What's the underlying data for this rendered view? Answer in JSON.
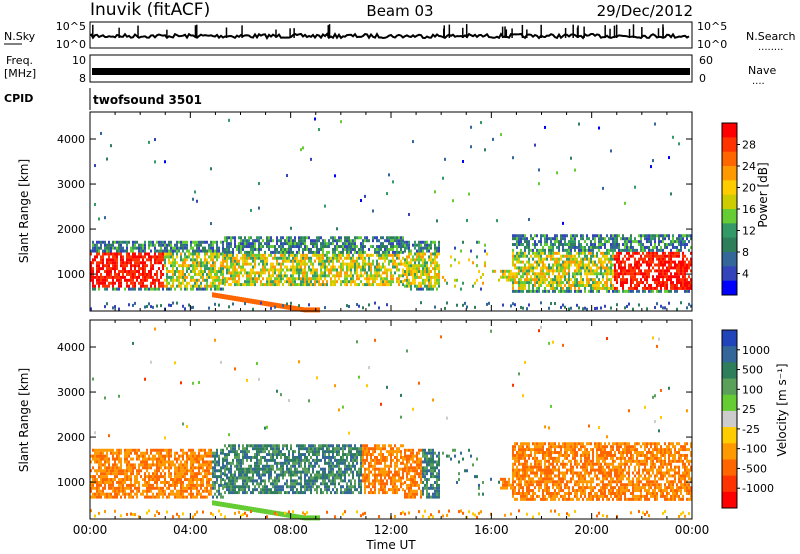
{
  "header": {
    "station": "Inuvik (fitACF)",
    "beam": "Beam 03",
    "date": "29/Dec/2012"
  },
  "noise_panel": {
    "left_label": "N.Sky",
    "right_label": "N.Search",
    "right_dots": "........",
    "tick_labels": [
      "10^5",
      "10^0"
    ],
    "right_tick_labels": [
      "10^5",
      "10^0"
    ]
  },
  "freq_panel": {
    "left_label_line1": "Freq.",
    "left_label_line2": "[MHz]",
    "right_label": "Nave",
    "right_dots": "....",
    "left_ticks": [
      "10",
      "8"
    ],
    "right_ticks": [
      "60",
      "0"
    ]
  },
  "cpid": {
    "label": "CPID",
    "value": "twofsound 3501"
  },
  "chart_data": [
    {
      "type": "heatmap",
      "name": "power",
      "ylabel": "Slant Range [km]",
      "yticks": [
        "4000",
        "3000",
        "2000",
        "1000"
      ],
      "ylim": [
        180,
        4600
      ],
      "colorbar_label": "Power [dB]",
      "colorbar_ticks": [
        "28",
        "24",
        "20",
        "16",
        "12",
        "8",
        "4"
      ],
      "colorbar_colors": [
        "#ff0000",
        "#ff3300",
        "#ff6600",
        "#ff9900",
        "#ffcc00",
        "#cccc00",
        "#66cc33",
        "#339966",
        "#2e7d5b",
        "#336699",
        "#3344bb",
        "#0000ff"
      ]
    },
    {
      "type": "heatmap",
      "name": "velocity",
      "ylabel": "Slant Range [km]",
      "yticks": [
        "4000",
        "3000",
        "2000",
        "1000"
      ],
      "ylim": [
        180,
        4600
      ],
      "colorbar_label": "Velocity [m s⁻¹]",
      "colorbar_ticks": [
        "1000",
        "500",
        "100",
        "25",
        "-25",
        "-100",
        "-500",
        "-1000"
      ],
      "colorbar_colors": [
        "#2244bb",
        "#336699",
        "#2e7d5b",
        "#5aa05a",
        "#66cc33",
        "#cccccc",
        "#ffcc00",
        "#ff9900",
        "#ff6600",
        "#ff3300",
        "#ff0000"
      ]
    }
  ],
  "time_axis": {
    "labels": [
      "00:00",
      "04:00",
      "08:00",
      "12:00",
      "16:00",
      "20:00",
      "00:00"
    ],
    "title": "Time UT"
  }
}
